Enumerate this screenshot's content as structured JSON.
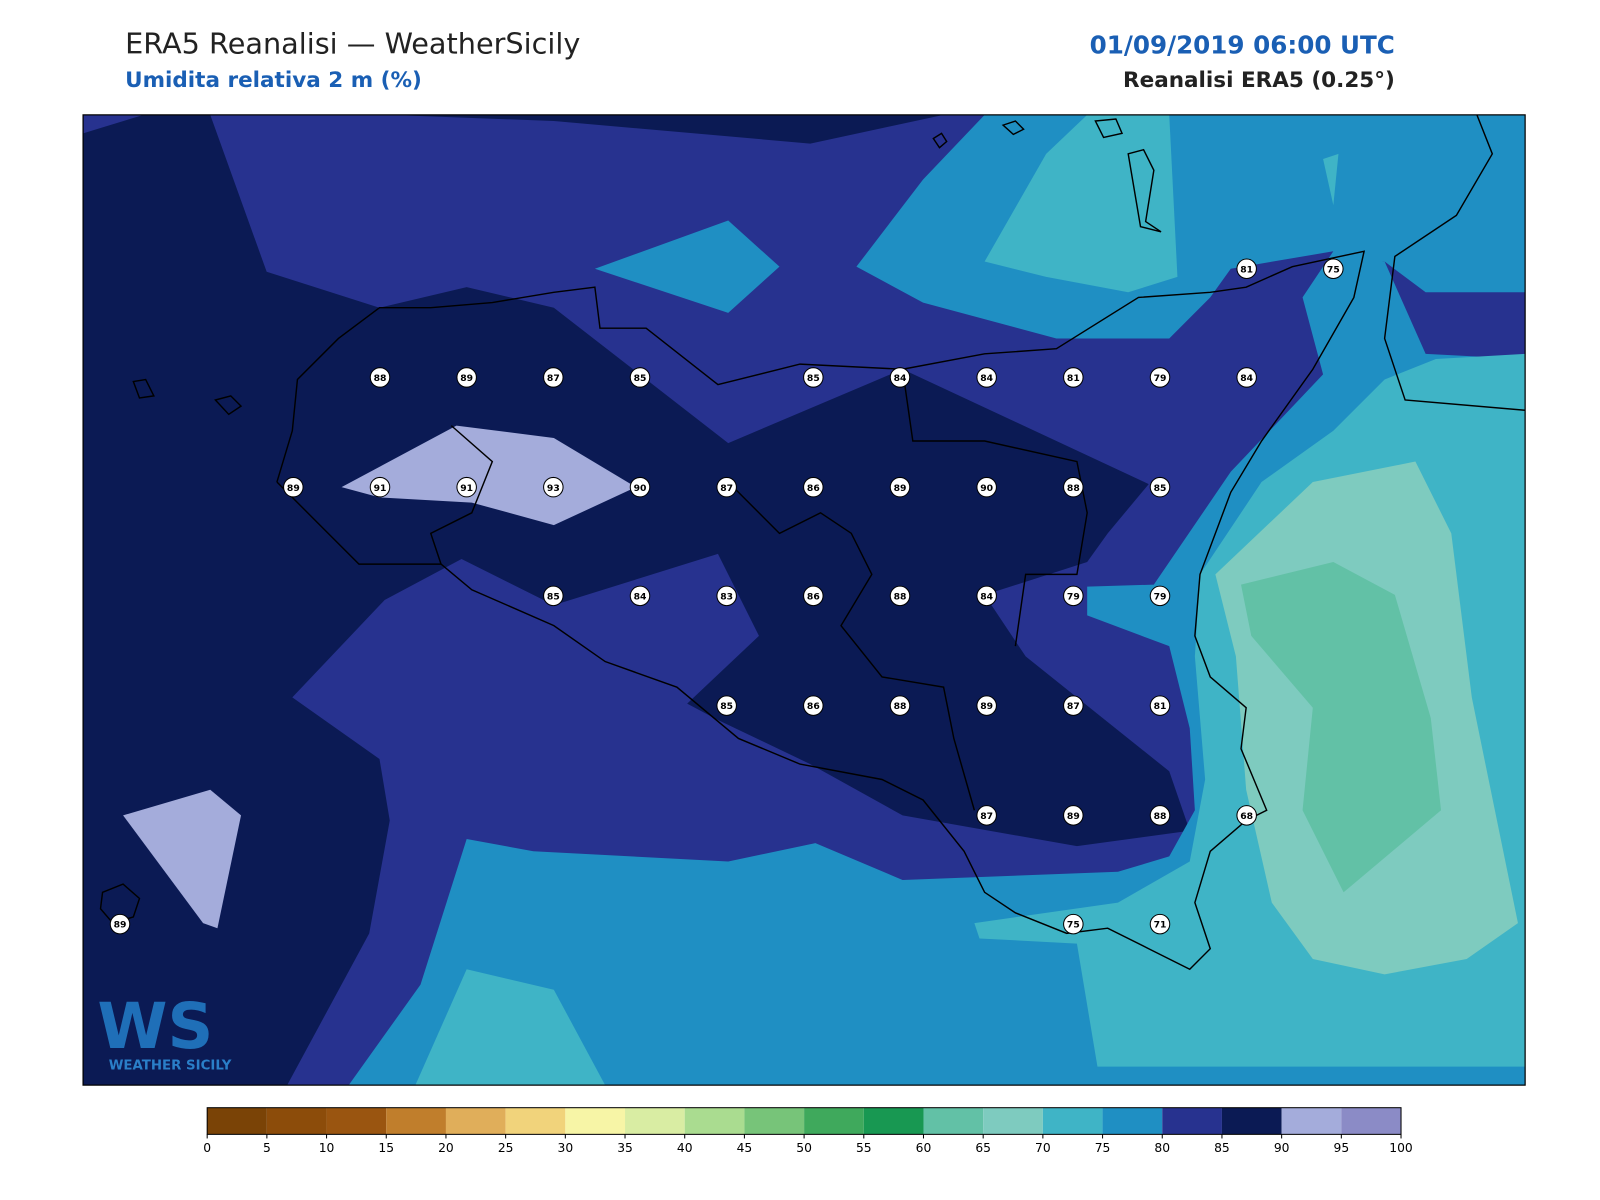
{
  "header": {
    "title": "ERA5 Reanalisi — WeatherSicily",
    "subtitle": "Umidita relativa 2 m (%)",
    "datetime": "01/09/2019 06:00 UTC",
    "source": "Reanalisi ERA5 (0.25°)"
  },
  "stations": [
    81,
    75,
    88,
    89,
    87,
    85,
    85,
    84,
    84,
    81,
    79,
    84,
    89,
    91,
    91,
    93,
    90,
    87,
    86,
    89,
    90,
    88,
    85,
    85,
    84,
    83,
    86,
    88,
    84,
    79,
    79,
    85,
    86,
    88,
    89,
    87,
    81,
    87,
    89,
    88,
    68,
    89,
    75,
    71
  ],
  "colorbar": {
    "ticks": [
      0,
      5,
      10,
      15,
      20,
      25,
      30,
      35,
      40,
      45,
      50,
      55,
      60,
      65,
      70,
      75,
      80,
      85,
      90,
      95,
      100
    ],
    "colors": [
      "#7a4306",
      "#8c4c0a",
      "#9a5510",
      "#c07e2c",
      "#e0ae5a",
      "#f1d37b",
      "#f7f5a6",
      "#d9eda3",
      "#aadc90",
      "#77c479",
      "#3fa95c",
      "#189852",
      "#62c1a6",
      "#7ecbbf",
      "#3fb4c6",
      "#1f8fc3",
      "#27328f",
      "#0b1a54",
      "#a4acdb",
      "#8b8bc6"
    ]
  },
  "logo": {
    "mark": "WS",
    "name": "WEATHER SICILY"
  }
}
